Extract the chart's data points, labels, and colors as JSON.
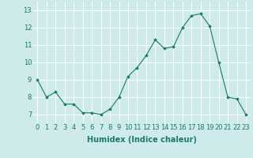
{
  "x": [
    0,
    1,
    2,
    3,
    4,
    5,
    6,
    7,
    8,
    9,
    10,
    11,
    12,
    13,
    14,
    15,
    16,
    17,
    18,
    19,
    20,
    21,
    22,
    23
  ],
  "y": [
    9.0,
    8.0,
    8.3,
    7.6,
    7.6,
    7.1,
    7.1,
    7.0,
    7.3,
    8.0,
    9.2,
    9.7,
    10.4,
    11.3,
    10.8,
    10.9,
    12.0,
    12.7,
    12.8,
    12.1,
    10.0,
    8.0,
    7.9,
    7.0
  ],
  "line_color": "#1a7a6e",
  "marker": "D",
  "marker_size": 1.8,
  "bg_color": "#ceeaea",
  "grid_color": "#ffffff",
  "xlabel": "Humidex (Indice chaleur)",
  "xlabel_fontsize": 7,
  "tick_fontsize": 6,
  "ylim": [
    6.5,
    13.5
  ],
  "xlim": [
    -0.5,
    23.5
  ],
  "yticks": [
    7,
    8,
    9,
    10,
    11,
    12,
    13
  ],
  "xticks": [
    0,
    1,
    2,
    3,
    4,
    5,
    6,
    7,
    8,
    9,
    10,
    11,
    12,
    13,
    14,
    15,
    16,
    17,
    18,
    19,
    20,
    21,
    22,
    23
  ]
}
